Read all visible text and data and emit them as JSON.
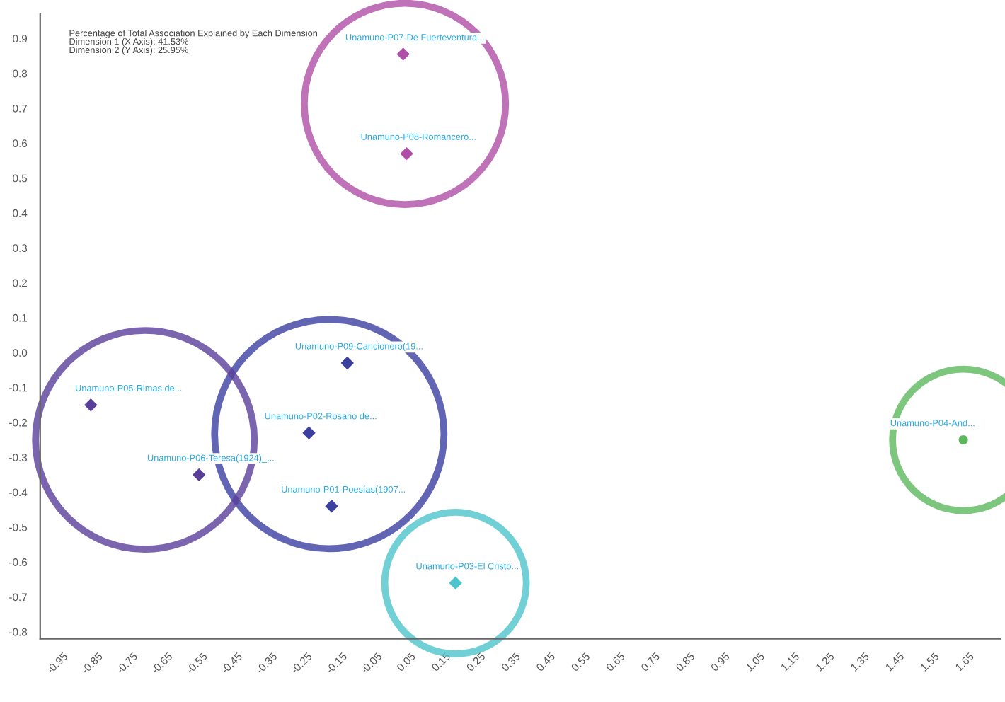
{
  "chart_data": {
    "type": "scatter",
    "marker": "diamond",
    "grid": false,
    "legend": false,
    "annotations": [
      "Percentage of Total Association Explained by Each Dimension",
      "Dimension 1 (X Axis): 41.53%",
      "Dimension 2 (Y Axis): 25.95%",
      {
        "text": "Unamuno-P07-De Fuerteventura...",
        "x": 0.04,
        "y": 0.855
      },
      {
        "text": "Unamuno-P08-Romancero...",
        "x": 0.05,
        "y": 0.57
      },
      {
        "text": "Unamuno-P09-Cancionero(19...",
        "x": -0.12,
        "y": -0.03
      },
      {
        "text": "Unamuno-P02-Rosario de...",
        "x": -0.23,
        "y": -0.23
      },
      {
        "text": "Unamuno-P01-Poesías(1907...",
        "x": -0.165,
        "y": -0.44
      },
      {
        "text": "Unamuno-P05-Rimas de...",
        "x": -0.855,
        "y": -0.15
      },
      {
        "text": "Unamuno-P06-Teresa(1924)_...",
        "x": -0.545,
        "y": -0.35
      },
      {
        "text": "Unamuno-P03-El Cristo...",
        "x": 0.19,
        "y": -0.66
      },
      {
        "text": "Unamuno-P04-And...",
        "x": 1.645,
        "y": -0.25
      }
    ],
    "series": [
      {
        "color": "#b04fa8",
        "x": [
          0.04,
          0.05
        ],
        "values": [
          0.855,
          0.57
        ]
      },
      {
        "color": "#3a3fa0",
        "x": [
          -0.12,
          -0.23,
          -0.165
        ],
        "values": [
          -0.03,
          -0.23,
          -0.44
        ]
      },
      {
        "color": "#5a3f9a",
        "x": [
          -0.855,
          -0.545
        ],
        "values": [
          -0.15,
          -0.35
        ]
      },
      {
        "color": "#4cc4cc",
        "x": [
          0.19
        ],
        "values": [
          -0.66
        ]
      },
      {
        "color": "#5cb85c",
        "marker": "circle",
        "x": [
          1.645
        ],
        "values": [
          -0.25
        ]
      }
    ],
    "xlim": [
      -1.0,
      1.75
    ],
    "ylim": [
      -0.82,
      0.97
    ],
    "xticks": [
      -0.95,
      -0.85,
      -0.75,
      -0.65,
      -0.55,
      -0.45,
      -0.35,
      -0.25,
      -0.15,
      -0.05,
      0.05,
      0.15,
      0.25,
      0.35,
      0.45,
      0.55,
      0.65,
      0.75,
      0.85,
      0.95,
      1.05,
      1.15,
      1.25,
      1.35,
      1.45,
      1.55,
      1.65
    ],
    "yticks": [
      -0.8,
      -0.7,
      -0.6,
      -0.5,
      -0.4,
      -0.3,
      -0.2,
      -0.1,
      {
        "value": 0,
        "label": "0.0"
      },
      0.1,
      0.2,
      0.3,
      0.4,
      0.5,
      0.6,
      0.7,
      0.8,
      0.9
    ]
  }
}
